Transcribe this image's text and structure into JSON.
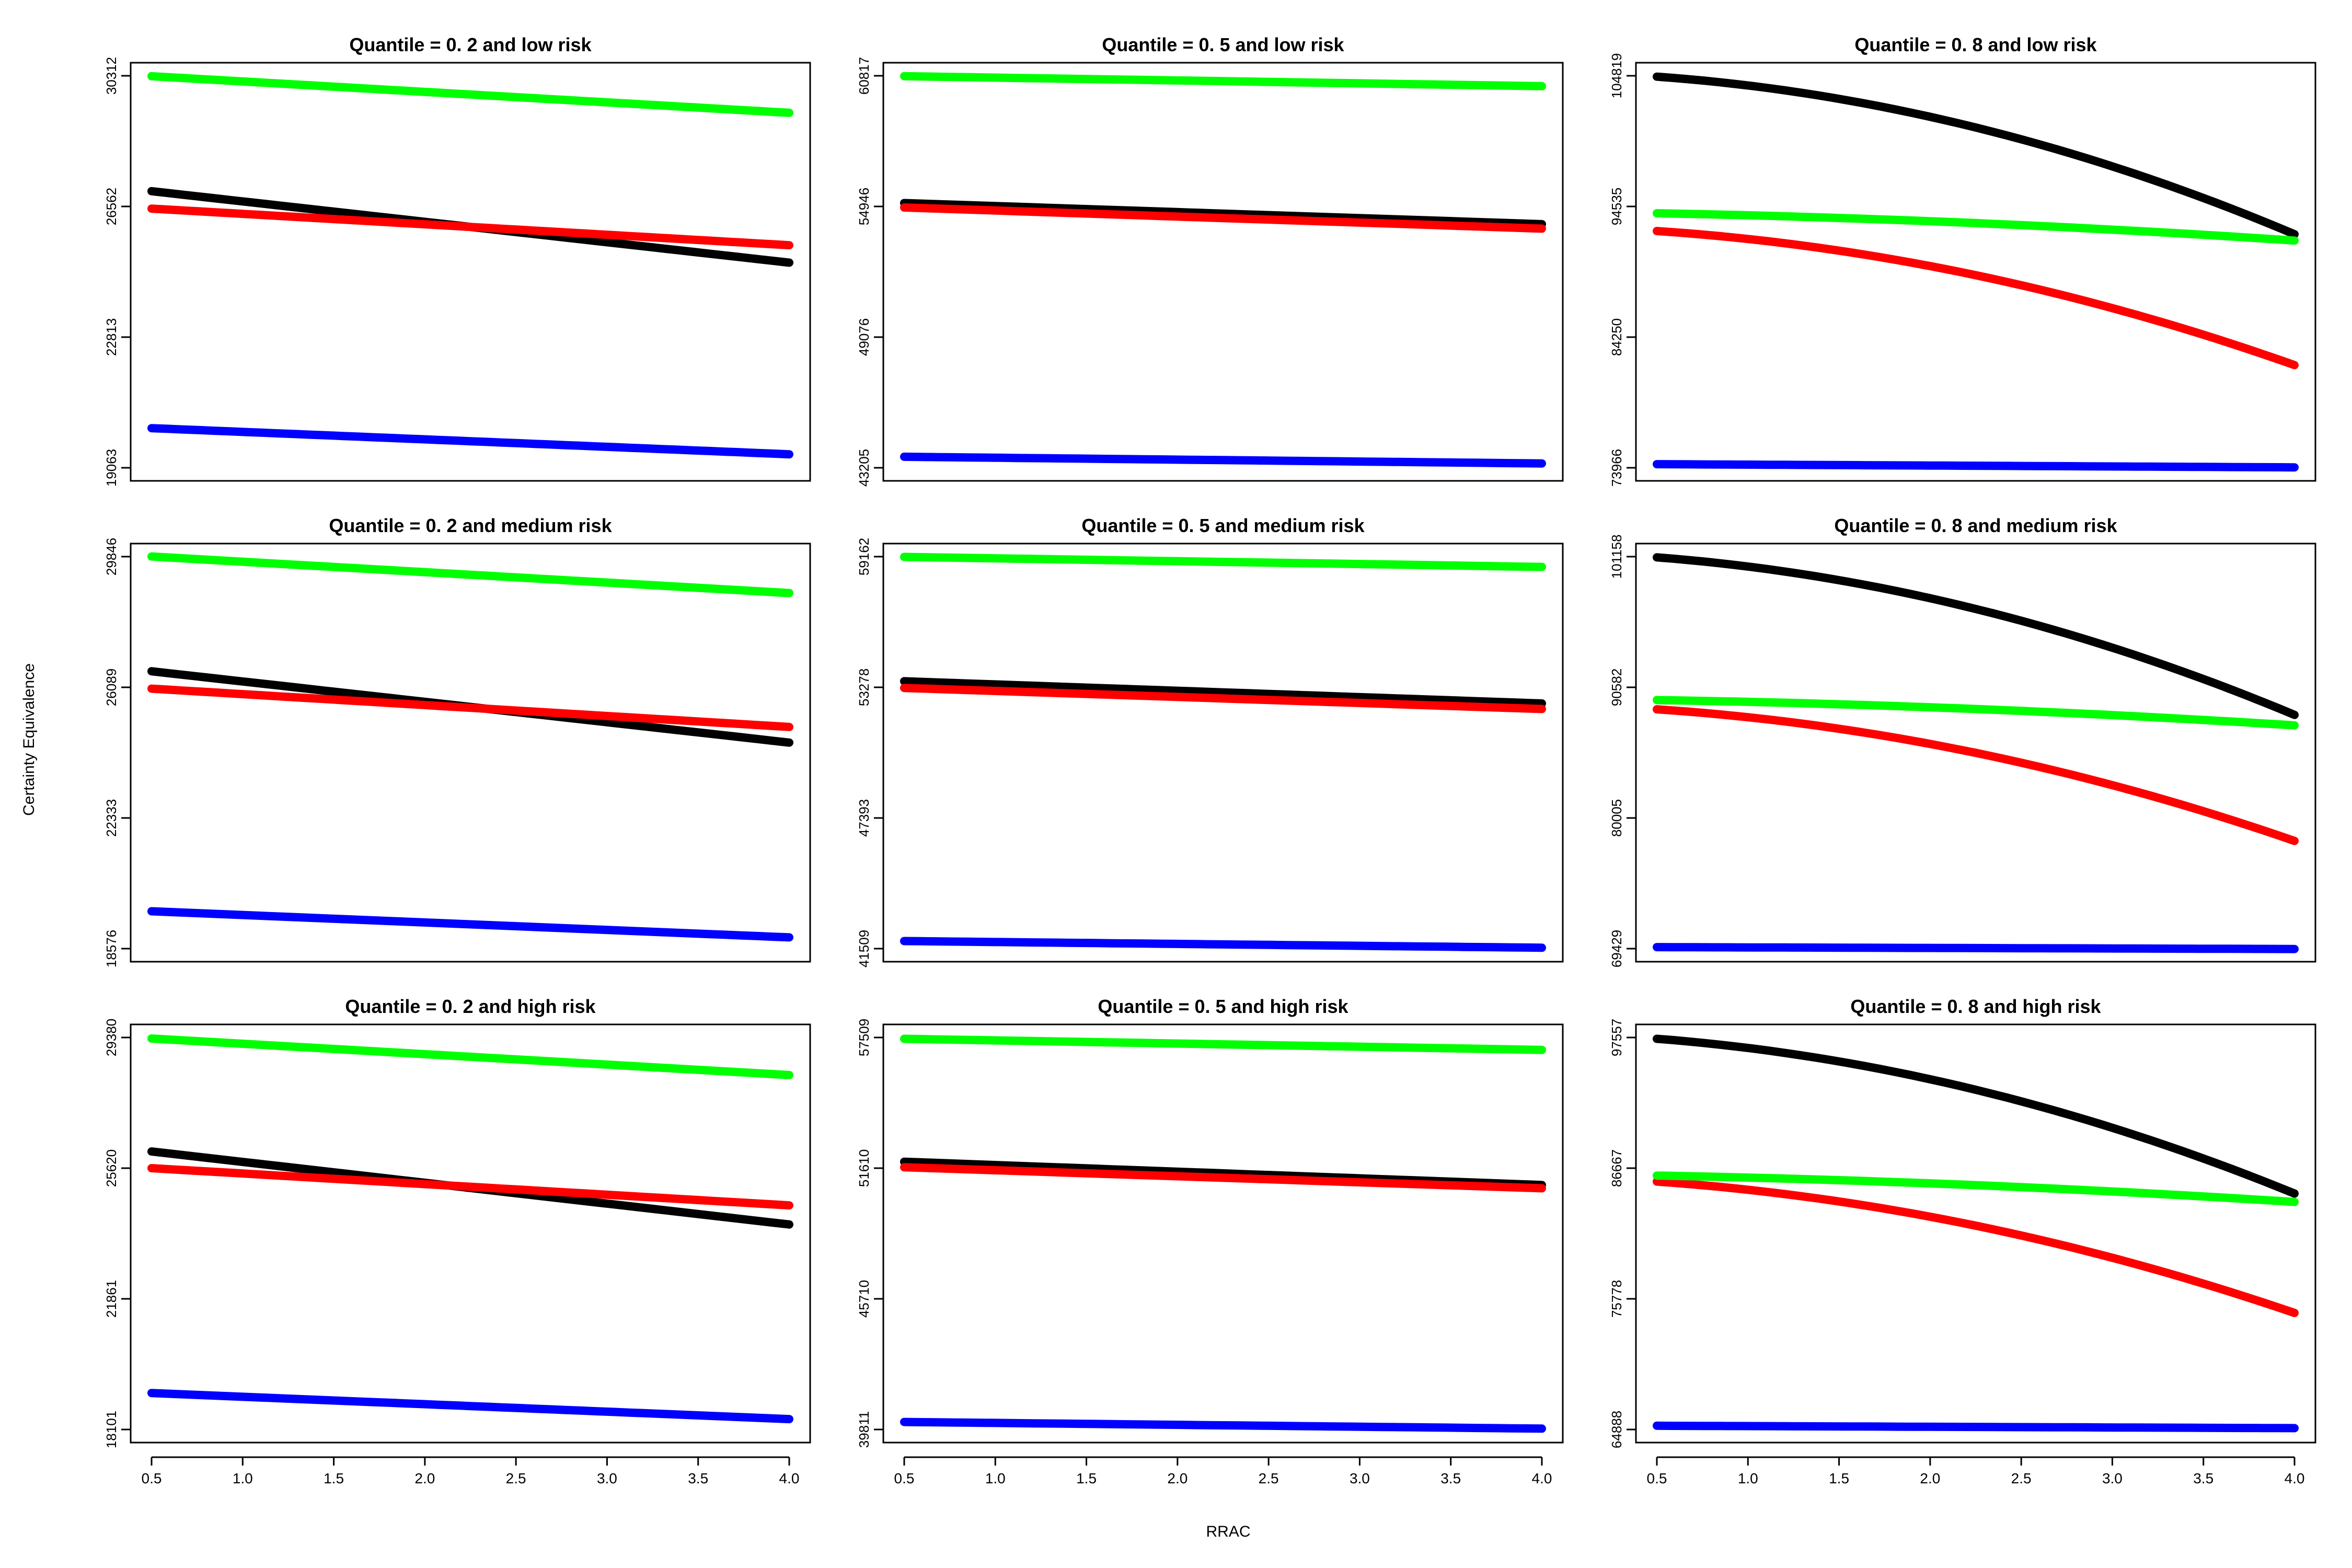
{
  "figure": {
    "ylabel": "Certainty Equivalence",
    "xlabel": "RRAC"
  },
  "colors": {
    "black": "#000000",
    "red": "#ff0000",
    "green": "#00ff00",
    "blue": "#0000ff"
  },
  "chart_data": [
    {
      "type": "line",
      "title": "Quantile = 0. 2 and low risk",
      "x": [
        0.5,
        4.0
      ],
      "xticks": [
        "0.5",
        "1.0",
        "1.5",
        "2.0",
        "2.5",
        "3.0",
        "3.5",
        "4.0"
      ],
      "ylim": [
        19063,
        30312
      ],
      "yticks": [
        "19063",
        "22813",
        "26562",
        "30312"
      ],
      "series": [
        {
          "name": "black",
          "color": "#000000",
          "start": 27000,
          "end": 24950,
          "curve": 0
        },
        {
          "name": "red",
          "color": "#ff0000",
          "start": 26500,
          "end": 25450,
          "curve": 0
        },
        {
          "name": "green",
          "color": "#00ff00",
          "start": 30300,
          "end": 29250,
          "curve": 0
        },
        {
          "name": "blue",
          "color": "#0000ff",
          "start": 20200,
          "end": 19450,
          "curve": 0
        }
      ]
    },
    {
      "type": "line",
      "title": "Quantile = 0. 5 and low risk",
      "x": [
        0.5,
        4.0
      ],
      "xticks": [
        "0.5",
        "1.0",
        "1.5",
        "2.0",
        "2.5",
        "3.0",
        "3.5",
        "4.0"
      ],
      "ylim": [
        43205,
        60817
      ],
      "yticks": [
        "43205",
        "49076",
        "54946",
        "60817"
      ],
      "series": [
        {
          "name": "black",
          "color": "#000000",
          "start": 55100,
          "end": 54150,
          "curve": 0
        },
        {
          "name": "red",
          "color": "#ff0000",
          "start": 54900,
          "end": 53950,
          "curve": 0
        },
        {
          "name": "green",
          "color": "#00ff00",
          "start": 60800,
          "end": 60350,
          "curve": 0
        },
        {
          "name": "blue",
          "color": "#0000ff",
          "start": 43700,
          "end": 43400,
          "curve": 0
        }
      ]
    },
    {
      "type": "line",
      "title": "Quantile = 0. 8 and low risk",
      "x": [
        0.5,
        4.0
      ],
      "xticks": [
        "0.5",
        "1.0",
        "1.5",
        "2.0",
        "2.5",
        "3.0",
        "3.5",
        "4.0"
      ],
      "ylim": [
        73966,
        104819
      ],
      "yticks": [
        "73966",
        "84250",
        "94535",
        "104819"
      ],
      "series": [
        {
          "name": "black",
          "color": "#000000",
          "start": 104750,
          "end": 92350,
          "curve": 2200
        },
        {
          "name": "red",
          "color": "#ff0000",
          "start": 92600,
          "end": 82050,
          "curve": 1800
        },
        {
          "name": "green",
          "color": "#00ff00",
          "start": 94000,
          "end": 91850,
          "curve": 300
        },
        {
          "name": "blue",
          "color": "#0000ff",
          "start": 74250,
          "end": 74000,
          "curve": 0
        }
      ]
    },
    {
      "type": "line",
      "title": "Quantile = 0. 2 and medium risk",
      "x": [
        0.5,
        4.0
      ],
      "xticks": [
        "0.5",
        "1.0",
        "1.5",
        "2.0",
        "2.5",
        "3.0",
        "3.5",
        "4.0"
      ],
      "ylim": [
        18576,
        29846
      ],
      "yticks": [
        "18576",
        "22333",
        "26089",
        "29846"
      ],
      "series": [
        {
          "name": "black",
          "color": "#000000",
          "start": 26550,
          "end": 24500,
          "curve": 0
        },
        {
          "name": "red",
          "color": "#ff0000",
          "start": 26050,
          "end": 24950,
          "curve": 0
        },
        {
          "name": "green",
          "color": "#00ff00",
          "start": 29850,
          "end": 28800,
          "curve": 0
        },
        {
          "name": "blue",
          "color": "#0000ff",
          "start": 19650,
          "end": 18900,
          "curve": 0
        }
      ]
    },
    {
      "type": "line",
      "title": "Quantile = 0. 5 and medium risk",
      "x": [
        0.5,
        4.0
      ],
      "xticks": [
        "0.5",
        "1.0",
        "1.5",
        "2.0",
        "2.5",
        "3.0",
        "3.5",
        "4.0"
      ],
      "ylim": [
        41509,
        59162
      ],
      "yticks": [
        "41509",
        "47393",
        "53278",
        "59162"
      ],
      "series": [
        {
          "name": "black",
          "color": "#000000",
          "start": 53550,
          "end": 52550,
          "curve": 0
        },
        {
          "name": "red",
          "color": "#ff0000",
          "start": 53250,
          "end": 52300,
          "curve": 0
        },
        {
          "name": "green",
          "color": "#00ff00",
          "start": 59150,
          "end": 58700,
          "curve": 0
        },
        {
          "name": "blue",
          "color": "#0000ff",
          "start": 41850,
          "end": 41550,
          "curve": 0
        }
      ]
    },
    {
      "type": "line",
      "title": "Quantile = 0. 8 and medium risk",
      "x": [
        0.5,
        4.0
      ],
      "xticks": [
        "0.5",
        "1.0",
        "1.5",
        "2.0",
        "2.5",
        "3.0",
        "3.5",
        "4.0"
      ],
      "ylim": [
        69429,
        101158
      ],
      "yticks": [
        "69429",
        "80005",
        "90582",
        "101158"
      ],
      "series": [
        {
          "name": "black",
          "color": "#000000",
          "start": 101100,
          "end": 88350,
          "curve": 2200
        },
        {
          "name": "red",
          "color": "#ff0000",
          "start": 88800,
          "end": 78150,
          "curve": 1800
        },
        {
          "name": "green",
          "color": "#00ff00",
          "start": 89550,
          "end": 87500,
          "curve": 300
        },
        {
          "name": "blue",
          "color": "#0000ff",
          "start": 69550,
          "end": 69400,
          "curve": 0
        }
      ]
    },
    {
      "type": "line",
      "title": "Quantile = 0. 2 and high risk",
      "x": [
        0.5,
        4.0
      ],
      "xticks": [
        "0.5",
        "1.0",
        "1.5",
        "2.0",
        "2.5",
        "3.0",
        "3.5",
        "4.0"
      ],
      "ylim": [
        18101,
        29380
      ],
      "yticks": [
        "18101",
        "21861",
        "25620",
        "29380"
      ],
      "series": [
        {
          "name": "black",
          "color": "#000000",
          "start": 26100,
          "end": 24000,
          "curve": 0
        },
        {
          "name": "red",
          "color": "#ff0000",
          "start": 25620,
          "end": 24550,
          "curve": 0
        },
        {
          "name": "green",
          "color": "#00ff00",
          "start": 29350,
          "end": 28300,
          "curve": 0
        },
        {
          "name": "blue",
          "color": "#0000ff",
          "start": 19150,
          "end": 18400,
          "curve": 0
        }
      ]
    },
    {
      "type": "line",
      "title": "Quantile = 0. 5 and high risk",
      "x": [
        0.5,
        4.0
      ],
      "xticks": [
        "0.5",
        "1.0",
        "1.5",
        "2.0",
        "2.5",
        "3.0",
        "3.5",
        "4.0"
      ],
      "ylim": [
        39811,
        57509
      ],
      "yticks": [
        "39811",
        "45710",
        "51610",
        "57509"
      ],
      "series": [
        {
          "name": "black",
          "color": "#000000",
          "start": 51900,
          "end": 50850,
          "curve": 0
        },
        {
          "name": "red",
          "color": "#ff0000",
          "start": 51650,
          "end": 50700,
          "curve": 0
        },
        {
          "name": "green",
          "color": "#00ff00",
          "start": 57450,
          "end": 56950,
          "curve": 0
        },
        {
          "name": "blue",
          "color": "#0000ff",
          "start": 40150,
          "end": 39850,
          "curve": 0
        }
      ]
    },
    {
      "type": "line",
      "title": "Quantile = 0. 8 and high risk",
      "x": [
        0.5,
        4.0
      ],
      "xticks": [
        "0.5",
        "1.0",
        "1.5",
        "2.0",
        "2.5",
        "3.0",
        "3.5",
        "4.0"
      ],
      "ylim": [
        64888,
        97557
      ],
      "yticks": [
        "64888",
        "75778",
        "86667",
        "97557"
      ],
      "series": [
        {
          "name": "black",
          "color": "#000000",
          "start": 97450,
          "end": 84550,
          "curve": 2200
        },
        {
          "name": "red",
          "color": "#ff0000",
          "start": 85550,
          "end": 74600,
          "curve": 1800
        },
        {
          "name": "green",
          "color": "#00ff00",
          "start": 86050,
          "end": 83850,
          "curve": 300
        },
        {
          "name": "blue",
          "color": "#0000ff",
          "start": 65200,
          "end": 65000,
          "curve": 0
        }
      ]
    }
  ]
}
